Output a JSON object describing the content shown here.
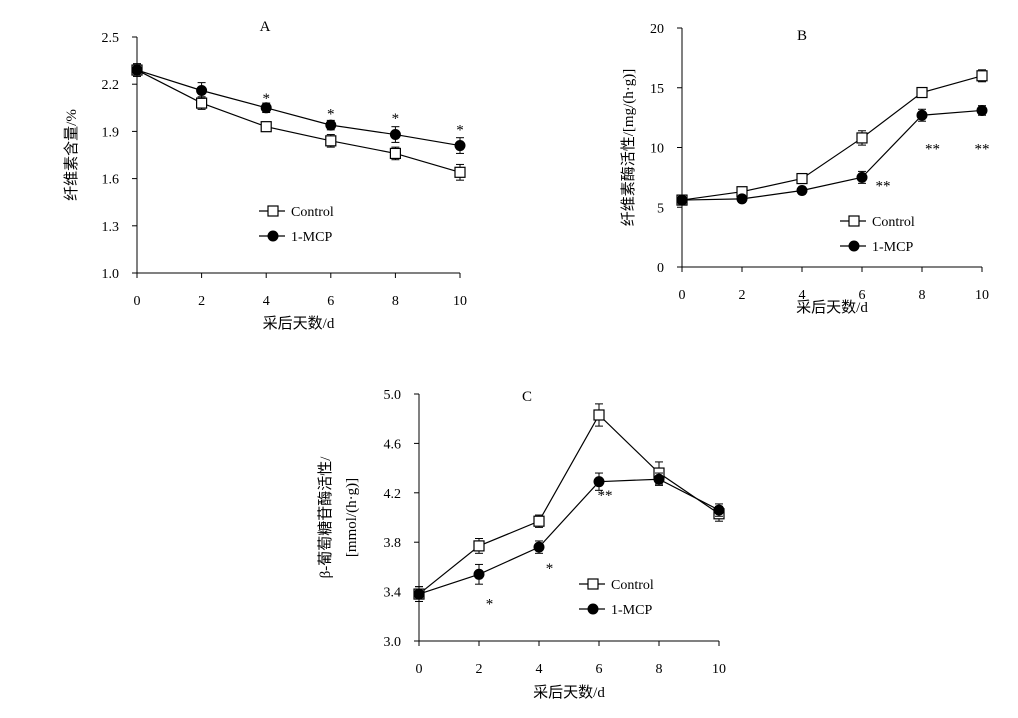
{
  "chart_data": [
    {
      "panel": "A",
      "type": "line",
      "title": "A",
      "xlabel": "采后天数/d",
      "ylabel": "纤维素含量/%",
      "xlim": [
        0,
        10
      ],
      "ylim": [
        1.0,
        2.5
      ],
      "xticks": [
        0,
        2,
        4,
        6,
        8,
        10
      ],
      "yticks": [
        "1.0",
        "1.3",
        "1.6",
        "1.9",
        "2.2",
        "2.5"
      ],
      "x": [
        0,
        2,
        4,
        6,
        8,
        10
      ],
      "series": [
        {
          "name": "Control",
          "marker": "open-square",
          "values": [
            2.29,
            2.08,
            1.93,
            1.84,
            1.76,
            1.64
          ],
          "errors": [
            0.04,
            0.04,
            0.03,
            0.04,
            0.04,
            0.05
          ]
        },
        {
          "name": "1-MCP",
          "marker": "filled-circle",
          "values": [
            2.29,
            2.16,
            2.05,
            1.94,
            1.88,
            1.81
          ],
          "errors": [
            0.04,
            0.05,
            0.03,
            0.03,
            0.05,
            0.05
          ]
        }
      ],
      "annotations": [
        {
          "x": 4,
          "y": 2.12,
          "text": "*"
        },
        {
          "x": 6,
          "y": 2.02,
          "text": "*"
        },
        {
          "x": 8,
          "y": 1.99,
          "text": "*"
        },
        {
          "x": 10,
          "y": 1.92,
          "text": "*"
        }
      ],
      "legend": "center-right",
      "grid": false
    },
    {
      "panel": "B",
      "type": "line",
      "title": "B",
      "xlabel": "采后天数/d",
      "ylabel": "纤维素酶活性/[mg/(h·g)]",
      "xlim": [
        0,
        10
      ],
      "ylim": [
        0,
        20
      ],
      "xticks": [
        0,
        2,
        4,
        6,
        8,
        10
      ],
      "yticks": [
        "0",
        "5",
        "10",
        "15",
        "20"
      ],
      "x": [
        0,
        2,
        4,
        6,
        8,
        10
      ],
      "series": [
        {
          "name": "Control",
          "marker": "open-square",
          "values": [
            5.6,
            6.3,
            7.4,
            10.8,
            14.6,
            16.0
          ],
          "errors": [
            0.3,
            0.3,
            0.3,
            0.6,
            0.4,
            0.5
          ]
        },
        {
          "name": "1-MCP",
          "marker": "filled-circle",
          "values": [
            5.6,
            5.7,
            6.4,
            7.5,
            12.7,
            13.1
          ],
          "errors": [
            0.3,
            0.3,
            0.3,
            0.5,
            0.5,
            0.4
          ]
        }
      ],
      "annotations": [
        {
          "x": 6.7,
          "y": 6.9,
          "text": "**"
        },
        {
          "x": 8.35,
          "y": 10.0,
          "text": "**"
        },
        {
          "x": 10,
          "y": 10.0,
          "text": "**"
        }
      ],
      "legend": "bottom-right",
      "grid": false
    },
    {
      "panel": "C",
      "type": "line",
      "title": "C",
      "xlabel": "采后天数/d",
      "ylabel": "β-葡萄糖苷酶活性/",
      "ylabel2": "[mmol/(h·g)]",
      "xlim": [
        0,
        10
      ],
      "ylim": [
        3.0,
        5.0
      ],
      "xticks": [
        0,
        2,
        4,
        6,
        8,
        10
      ],
      "yticks": [
        "3.0",
        "3.4",
        "3.8",
        "4.2",
        "4.6",
        "5.0"
      ],
      "x": [
        0,
        2,
        4,
        6,
        8,
        10
      ],
      "series": [
        {
          "name": "Control",
          "marker": "open-square",
          "values": [
            3.38,
            3.77,
            3.97,
            4.83,
            4.36,
            4.03
          ],
          "errors": [
            0.06,
            0.06,
            0.05,
            0.09,
            0.09,
            0.06
          ]
        },
        {
          "name": "1-MCP",
          "marker": "filled-circle",
          "values": [
            3.38,
            3.54,
            3.76,
            4.29,
            4.31,
            4.06
          ],
          "errors": [
            0.06,
            0.08,
            0.05,
            0.07,
            0.05,
            0.05
          ]
        }
      ],
      "annotations": [
        {
          "x": 2.35,
          "y": 3.31,
          "text": "*"
        },
        {
          "x": 4.35,
          "y": 3.6,
          "text": "*"
        },
        {
          "x": 6.2,
          "y": 4.19,
          "text": "**"
        }
      ],
      "legend": "bottom-right",
      "grid": false
    }
  ]
}
